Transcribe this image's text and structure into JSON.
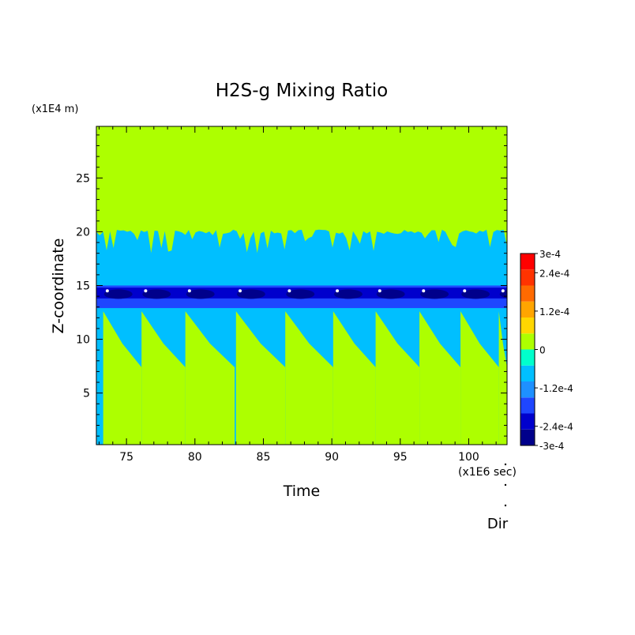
{
  "chart_data": {
    "type": "heatmap",
    "title": "H2S-g Mixing Ratio",
    "xlabel": "Time",
    "ylabel": "Z-coordinate",
    "x_unit": "(x1E6 sec)",
    "y_unit": "(x1E4 m)",
    "xlim": [
      72.8,
      102.8
    ],
    "ylim": [
      0.2,
      29.8
    ],
    "x_ticks": [
      75,
      80,
      85,
      90,
      95,
      100
    ],
    "y_ticks": [
      5,
      10,
      15,
      20,
      25
    ],
    "grid": false,
    "colorbar": {
      "min": -0.0003,
      "max": 0.0003,
      "levels": 12,
      "labels": [
        "3e-4",
        "2.4e-4",
        "1.2e-4",
        "0",
        "-1.2e-4",
        "-2.4e-4",
        "-3e-4"
      ],
      "colors": [
        "#00008b",
        "#0000cd",
        "#1e46ff",
        "#1e90ff",
        "#00bfff",
        "#00ffcc",
        "#adff00",
        "#ffd700",
        "#ffa500",
        "#ff6a00",
        "#ff3300",
        "#ff0000"
      ]
    },
    "layers": {
      "upper_value": 0,
      "middle_value": -6e-05,
      "upper_boundary_z": 20.2,
      "minimum_band": [
        12.9,
        15.0
      ],
      "minimum_value": -0.0003
    },
    "pulses": [
      73.3,
      76.1,
      79.3,
      83.0,
      86.6,
      90.1,
      93.2,
      96.4,
      99.4,
      102.2
    ],
    "direction_label": "Dir"
  }
}
